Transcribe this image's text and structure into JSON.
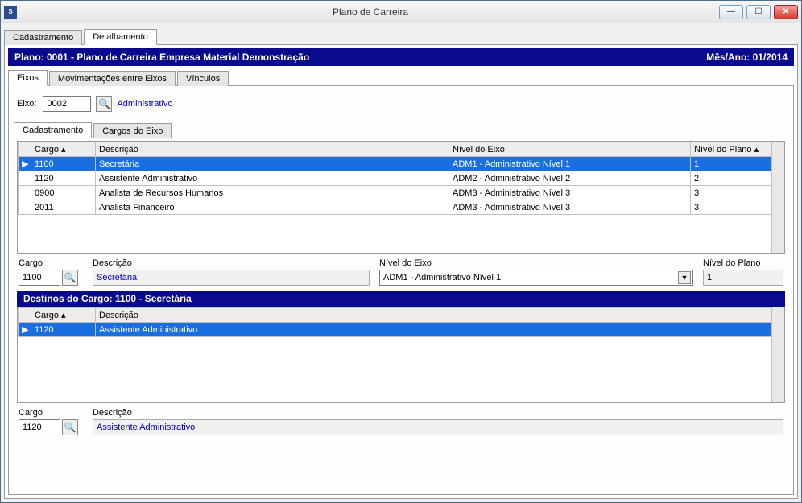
{
  "window": {
    "title": "Plano de Carreira",
    "icon_text": "S"
  },
  "outer_tabs": {
    "cadastramento": "Cadastramento",
    "detalhamento": "Detalhamento"
  },
  "header": {
    "left": "Plano:  0001 - Plano de Carreira Empresa Material Demonstração",
    "right": "Mês/Ano:  01/2014"
  },
  "inner_tabs": {
    "eixos": "Eixos",
    "mov": "Movimentações entre Eixos",
    "vinc": "Vínculos"
  },
  "eixo": {
    "label": "Eixo:",
    "value": "0002",
    "desc": "Administrativo"
  },
  "cargos_tabs": {
    "cadastramento": "Cadastramento",
    "cargos_eixo": "Cargos do Eixo"
  },
  "cargos_grid": {
    "cols": {
      "cargo": "Cargo ▴",
      "descricao": "Descrição",
      "nivel_eixo": "Nível do Eixo",
      "nivel_plano": "Nível do Plano ▴"
    },
    "rows": [
      {
        "cargo": "1100",
        "descricao": "Secretária",
        "nivel_eixo": "ADM1 - Administrativo Nível 1",
        "nivel_plano": "1",
        "selected": true
      },
      {
        "cargo": "1120",
        "descricao": "Assistente Administrativo",
        "nivel_eixo": "ADM2 - Administrativo Nível 2",
        "nivel_plano": "2",
        "selected": false
      },
      {
        "cargo": "0900",
        "descricao": "Analista de Recursos Humanos",
        "nivel_eixo": "ADM3 - Administrativo Nível 3",
        "nivel_plano": "3",
        "selected": false
      },
      {
        "cargo": "2011",
        "descricao": "Analista Financeiro",
        "nivel_eixo": "ADM3 - Administrativo Nível 3",
        "nivel_plano": "3",
        "selected": false
      }
    ]
  },
  "cargo_form": {
    "cargo_label": "Cargo",
    "cargo_value": "1100",
    "desc_label": "Descrição",
    "desc_value": "Secretária",
    "nivel_eixo_label": "Nível do Eixo",
    "nivel_eixo_value": "ADM1 - Administrativo Nível 1",
    "nivel_plano_label": "Nível do Plano",
    "nivel_plano_value": "1"
  },
  "destinos": {
    "header": "Destinos do Cargo: 1100 - Secretária",
    "cols": {
      "cargo": "Cargo ▴",
      "descricao": "Descrição"
    },
    "rows": [
      {
        "cargo": "1120",
        "descricao": "Assistente Administrativo",
        "selected": true
      }
    ]
  },
  "dest_form": {
    "cargo_label": "Cargo",
    "cargo_value": "1120",
    "desc_label": "Descrição",
    "desc_value": "Assistente Administrativo"
  }
}
